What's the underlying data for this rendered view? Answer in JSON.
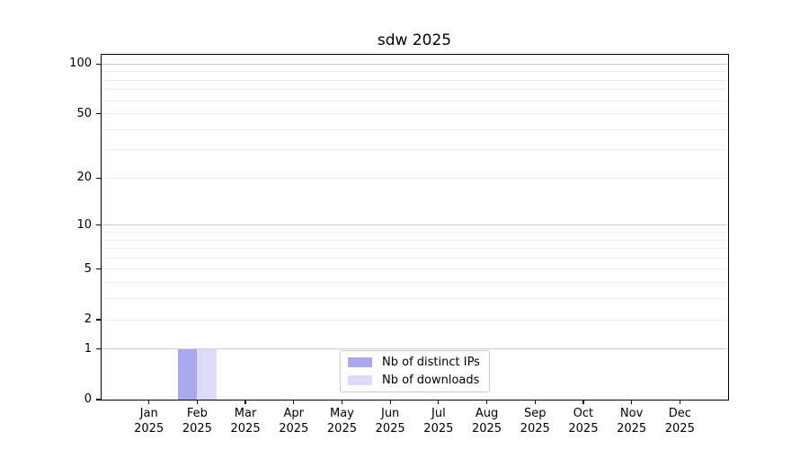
{
  "chart_data": {
    "type": "bar",
    "title": "sdw 2025",
    "categories": [
      "Jan 2025",
      "Feb 2025",
      "Mar 2025",
      "Apr 2025",
      "May 2025",
      "Jun 2025",
      "Jul 2025",
      "Aug 2025",
      "Sep 2025",
      "Oct 2025",
      "Nov 2025",
      "Dec 2025"
    ],
    "series": [
      {
        "name": "Nb of distinct IPs",
        "color": "#a9a9f0",
        "values": [
          0,
          1,
          0,
          0,
          0,
          0,
          0,
          0,
          0,
          0,
          0,
          0
        ]
      },
      {
        "name": "Nb of downloads",
        "color": "#dcdcf8",
        "values": [
          0,
          1,
          0,
          0,
          0,
          0,
          0,
          0,
          0,
          0,
          0,
          0
        ]
      }
    ],
    "xlabel": "",
    "ylabel": "",
    "yscale": "log1p",
    "ylim": [
      0,
      114
    ],
    "y_tick_values": [
      0,
      1,
      2,
      5,
      10,
      20,
      50,
      100
    ],
    "y_major_gridlines": [
      1,
      10,
      100
    ],
    "y_minor_gridlines": [
      2,
      3,
      4,
      5,
      6,
      7,
      8,
      9,
      20,
      30,
      40,
      50,
      60,
      70,
      80,
      90
    ],
    "grid": "horizontal",
    "legend_position": "lower center"
  },
  "colors": {
    "background": "#ffffff",
    "spine": "#000000",
    "text": "#000000",
    "major_grid": "#cccccc",
    "minor_grid": "#ececec",
    "legend_border": "#c8c8c8",
    "legend_background": "#ffffff"
  }
}
